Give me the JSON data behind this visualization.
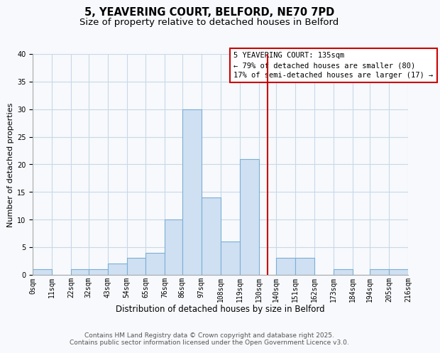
{
  "title": "5, YEAVERING COURT, BELFORD, NE70 7PD",
  "subtitle": "Size of property relative to detached houses in Belford",
  "xlabel": "Distribution of detached houses by size in Belford",
  "ylabel": "Number of detached properties",
  "bar_color": "#cfe0f3",
  "bar_edge_color": "#7bafd4",
  "background_color": "#f7f9fc",
  "grid_color": "#c8d8e8",
  "bin_edges": [
    0,
    11,
    22,
    32,
    43,
    54,
    65,
    76,
    86,
    97,
    108,
    119,
    130,
    140,
    151,
    162,
    173,
    184,
    194,
    205,
    216
  ],
  "bin_labels": [
    "0sqm",
    "11sqm",
    "22sqm",
    "32sqm",
    "43sqm",
    "54sqm",
    "65sqm",
    "76sqm",
    "86sqm",
    "97sqm",
    "108sqm",
    "119sqm",
    "130sqm",
    "140sqm",
    "151sqm",
    "162sqm",
    "173sqm",
    "184sqm",
    "194sqm",
    "205sqm",
    "216sqm"
  ],
  "counts": [
    1,
    0,
    1,
    1,
    2,
    3,
    4,
    10,
    30,
    14,
    6,
    21,
    0,
    3,
    3,
    0,
    1,
    0,
    1,
    1
  ],
  "property_size": 135,
  "vline_color": "#cc0000",
  "annot_line1": "5 YEAVERING COURT: 135sqm",
  "annot_line2": "← 79% of detached houses are smaller (80)",
  "annot_line3": "17% of semi-detached houses are larger (17) →",
  "ylim": [
    0,
    40
  ],
  "yticks": [
    0,
    5,
    10,
    15,
    20,
    25,
    30,
    35,
    40
  ],
  "footer_text": "Contains HM Land Registry data © Crown copyright and database right 2025.\nContains public sector information licensed under the Open Government Licence v3.0.",
  "title_fontsize": 10.5,
  "subtitle_fontsize": 9.5,
  "xlabel_fontsize": 8.5,
  "ylabel_fontsize": 8,
  "tick_fontsize": 7,
  "annot_fontsize": 7.5,
  "footer_fontsize": 6.5
}
